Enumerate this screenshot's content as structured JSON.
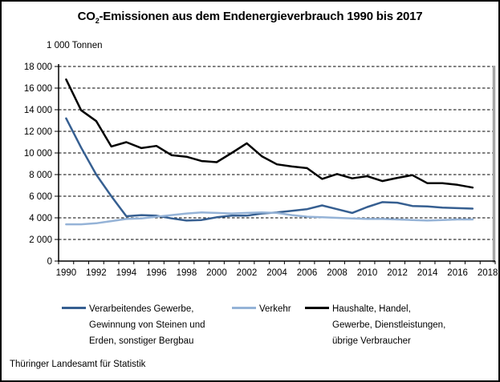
{
  "title": {
    "prefix": "CO",
    "sub": "2",
    "rest": "-Emissionen aus dem Endenergieverbrauch 1990 bis 2017"
  },
  "unit_label": "1 000 Tonnen",
  "source": "Thüringer Landesamt für Statistik",
  "colors": {
    "industry_line": "#365f91",
    "traffic_line": "#95b3d7",
    "households_line": "#000000",
    "gridline": "#000000",
    "axis": "#000000",
    "plot_right_border": "#a6a6a6"
  },
  "legend": {
    "items": [
      {
        "label": "Verarbeitendes Gewerbe,\nGewinnung von Steinen und\nErden, sonstiger Bergbau",
        "color": "#365f91",
        "name": "legend-item-verarbeitendes-gewerbe"
      },
      {
        "label": "Verkehr",
        "color": "#95b3d7",
        "name": "legend-item-verkehr"
      },
      {
        "label": "Haushalte, Handel,\nGewerbe, Dienstleistungen,\nübrige Verbraucher",
        "color": "#000000",
        "name": "legend-item-haushalte"
      }
    ]
  },
  "chart_data": {
    "type": "line",
    "title": "CO2-Emissionen aus dem Endenergieverbrauch 1990 bis 2017",
    "ylabel": "1 000 Tonnen",
    "xlabel": "",
    "ylim": [
      0,
      18000
    ],
    "xlim": [
      1990,
      2018
    ],
    "grid": "horizontal-dashed",
    "legend_position": "bottom",
    "x": [
      1990,
      1991,
      1992,
      1993,
      1994,
      1995,
      1996,
      1997,
      1998,
      1999,
      2000,
      2001,
      2002,
      2003,
      2004,
      2005,
      2006,
      2007,
      2008,
      2009,
      2010,
      2011,
      2012,
      2013,
      2014,
      2015,
      2016,
      2017
    ],
    "series": [
      {
        "name": "Verarbeitendes Gewerbe, Gewinnung von Steinen und Erden, sonstiger Bergbau",
        "color": "#365f91",
        "width": 2.5,
        "values": [
          13200,
          10500,
          8000,
          6000,
          4150,
          4250,
          4200,
          3950,
          3750,
          3800,
          4050,
          4200,
          4200,
          4400,
          4500,
          4650,
          4800,
          5150,
          4800,
          4450,
          5000,
          5450,
          5400,
          5100,
          5050,
          4950,
          4900,
          4850
        ]
      },
      {
        "name": "Verkehr",
        "color": "#95b3d7",
        "width": 2.5,
        "values": [
          3400,
          3400,
          3500,
          3700,
          3900,
          3950,
          4100,
          4250,
          4400,
          4500,
          4450,
          4400,
          4450,
          4500,
          4450,
          4250,
          4100,
          4050,
          4000,
          3950,
          3900,
          3900,
          3850,
          3800,
          3750,
          3800,
          3850,
          3850
        ]
      },
      {
        "name": "Haushalte, Handel, Gewerbe, Dienstleistungen, übrige Verbraucher",
        "color": "#000000",
        "width": 2.5,
        "values": [
          16800,
          13950,
          12950,
          10600,
          11000,
          10450,
          10650,
          9800,
          9650,
          9250,
          9150,
          10000,
          10900,
          9700,
          8950,
          8750,
          8600,
          7600,
          8050,
          7650,
          7850,
          7400,
          7700,
          7950,
          7200,
          7200,
          7050,
          6800
        ]
      }
    ],
    "y_tick_values": [
      0,
      2000,
      4000,
      6000,
      8000,
      10000,
      12000,
      14000,
      16000,
      18000
    ],
    "y_tick_labels": [
      "0",
      "2 000",
      "4 000",
      "6 000",
      "8 000",
      "10 000",
      "12 000",
      "14 000",
      "16 000",
      "18 000"
    ],
    "x_tick_labels": [
      "1990",
      "1992",
      "1994",
      "1996",
      "1998",
      "2000",
      "2002",
      "2004",
      "2006",
      "2008",
      "2010",
      "2012",
      "2014",
      "2016",
      "2018"
    ]
  }
}
